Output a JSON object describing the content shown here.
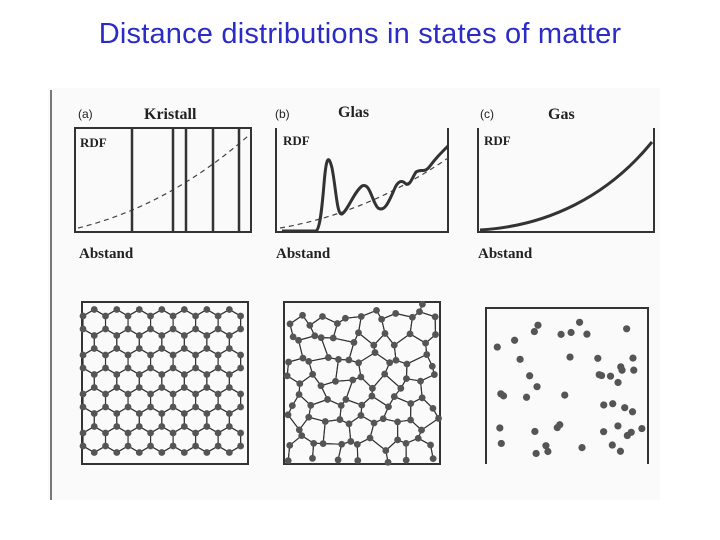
{
  "title": "Distance distributions in states of matter",
  "panels": [
    {
      "id": "a",
      "tag": "(a)",
      "state": "Kristall",
      "y_label": "RDF",
      "x_label": "Abstand"
    },
    {
      "id": "b",
      "tag": "(b)",
      "state": "Glas",
      "y_label": "RDF",
      "x_label": "Abstand"
    },
    {
      "id": "c",
      "tag": "(c)",
      "state": "Gas",
      "y_label": "RDF",
      "x_label": "Abstand"
    }
  ],
  "colors": {
    "title": "#2b2bc6",
    "ink": "#333333",
    "atom": "#555555"
  }
}
